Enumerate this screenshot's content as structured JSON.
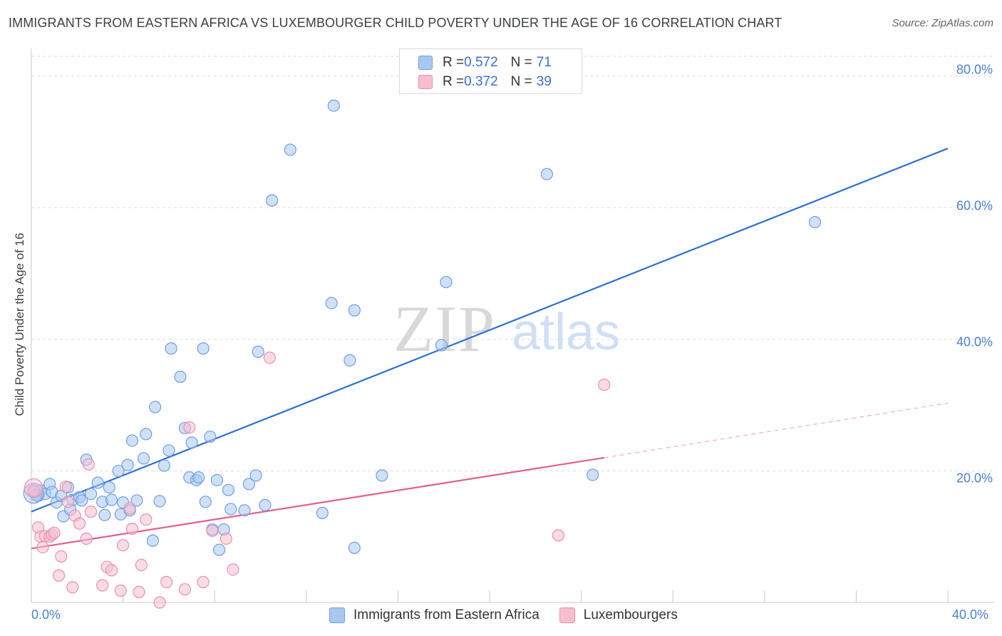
{
  "title": "IMMIGRANTS FROM EASTERN AFRICA VS LUXEMBOURGER CHILD POVERTY UNDER THE AGE OF 16 CORRELATION CHART",
  "source": "Source: ZipAtlas.com",
  "watermark": {
    "zip": "ZIP",
    "atlas": "atlas"
  },
  "colors": {
    "blue_fill": "#a9c8f0",
    "blue_stroke": "#6f9fe0",
    "blue_line": "#2e6fd0",
    "pink_fill": "#f6bfd0",
    "pink_stroke": "#ec8fae",
    "pink_line": "#e0608e",
    "axis_text": "#4a7fd4"
  },
  "legend": {
    "rows": [
      {
        "r_label": "R = ",
        "r_value": "0.572",
        "n_label": "N = ",
        "n_value": "71"
      },
      {
        "r_label": "R = ",
        "r_value": "0.372",
        "n_label": "N = ",
        "n_value": "39"
      }
    ]
  },
  "bottom_legend": {
    "series1": "Immigrants from Eastern Africa",
    "series2": "Luxembourgers"
  },
  "chart_data": {
    "type": "scatter",
    "title": "IMMIGRANTS FROM EASTERN AFRICA VS LUXEMBOURGER CHILD POVERTY UNDER THE AGE OF 16 CORRELATION CHART",
    "xlabel": "",
    "ylabel": "Child Poverty Under the Age of 16",
    "xlim": [
      0,
      40
    ],
    "ylim": [
      0,
      83
    ],
    "x_tick_labels": [
      "0.0%",
      "40.0%"
    ],
    "y_ticks": [
      20,
      40,
      60,
      80
    ],
    "y_tick_labels": [
      "20.0%",
      "40.0%",
      "60.0%",
      "80.0%"
    ],
    "grid": true,
    "legend_position": "top-center",
    "series": [
      {
        "name": "Immigrants from Eastern Africa",
        "color": "#a9c8f0",
        "R": 0.572,
        "N": 71,
        "trend": {
          "x0": 0,
          "y0": 13.8,
          "x1": 40,
          "y1": 69.0
        },
        "points": [
          [
            0.1,
            16.8
          ],
          [
            0.3,
            16.2
          ],
          [
            0.4,
            17.0
          ],
          [
            0.6,
            16.5
          ],
          [
            0.8,
            18.0
          ],
          [
            0.9,
            16.8
          ],
          [
            1.1,
            15.2
          ],
          [
            1.3,
            16.2
          ],
          [
            1.4,
            13.1
          ],
          [
            1.6,
            17.5
          ],
          [
            1.7,
            14.1
          ],
          [
            1.8,
            15.6
          ],
          [
            2.1,
            16.0
          ],
          [
            2.2,
            15.5
          ],
          [
            2.4,
            21.7
          ],
          [
            2.6,
            16.5
          ],
          [
            2.9,
            18.2
          ],
          [
            3.1,
            15.3
          ],
          [
            3.2,
            13.3
          ],
          [
            3.4,
            17.5
          ],
          [
            3.5,
            15.6
          ],
          [
            3.8,
            20.0
          ],
          [
            3.9,
            13.4
          ],
          [
            4.0,
            15.2
          ],
          [
            4.2,
            20.9
          ],
          [
            4.3,
            14.0
          ],
          [
            4.4,
            24.6
          ],
          [
            4.6,
            15.5
          ],
          [
            4.9,
            21.9
          ],
          [
            5.0,
            25.6
          ],
          [
            5.3,
            9.4
          ],
          [
            5.4,
            29.7
          ],
          [
            5.6,
            15.4
          ],
          [
            5.8,
            20.8
          ],
          [
            6.0,
            23.1
          ],
          [
            6.1,
            38.6
          ],
          [
            6.5,
            34.3
          ],
          [
            6.7,
            26.5
          ],
          [
            6.9,
            19.0
          ],
          [
            7.0,
            24.3
          ],
          [
            7.2,
            18.6
          ],
          [
            7.3,
            19.0
          ],
          [
            7.5,
            38.6
          ],
          [
            7.6,
            15.3
          ],
          [
            7.8,
            25.2
          ],
          [
            7.9,
            11.1
          ],
          [
            8.1,
            18.6
          ],
          [
            8.2,
            8.0
          ],
          [
            8.4,
            11.1
          ],
          [
            8.6,
            17.1
          ],
          [
            8.7,
            14.2
          ],
          [
            9.3,
            14.0
          ],
          [
            9.5,
            18.0
          ],
          [
            9.8,
            19.3
          ],
          [
            9.9,
            38.1
          ],
          [
            10.2,
            14.8
          ],
          [
            10.5,
            61.1
          ],
          [
            11.3,
            68.8
          ],
          [
            12.7,
            13.6
          ],
          [
            13.1,
            45.5
          ],
          [
            13.2,
            75.5
          ],
          [
            13.9,
            36.8
          ],
          [
            14.1,
            44.4
          ],
          [
            14.1,
            8.3
          ],
          [
            15.3,
            19.3
          ],
          [
            17.9,
            39.1
          ],
          [
            18.1,
            48.7
          ],
          [
            22.5,
            65.1
          ],
          [
            24.5,
            19.4
          ],
          [
            34.2,
            57.8
          ],
          [
            0.2,
            16.3
          ]
        ]
      },
      {
        "name": "Luxembourgers",
        "color": "#f6bfd0",
        "R": 0.372,
        "N": 39,
        "trend": {
          "x0": 0,
          "y0": 8.2,
          "x1": 25,
          "y1": 22.0
        },
        "trend_dashed": {
          "x0": 25,
          "y0": 22.0,
          "x1": 40,
          "y1": 30.3
        },
        "points": [
          [
            0.1,
            17.0
          ],
          [
            0.3,
            11.4
          ],
          [
            0.4,
            10.0
          ],
          [
            0.5,
            8.4
          ],
          [
            0.6,
            10.1
          ],
          [
            0.8,
            10.0
          ],
          [
            0.9,
            10.3
          ],
          [
            1.0,
            10.6
          ],
          [
            1.2,
            4.1
          ],
          [
            1.3,
            7.0
          ],
          [
            1.5,
            17.6
          ],
          [
            1.6,
            15.3
          ],
          [
            1.8,
            2.3
          ],
          [
            1.9,
            13.2
          ],
          [
            2.1,
            12.0
          ],
          [
            2.4,
            9.7
          ],
          [
            2.5,
            21.0
          ],
          [
            2.6,
            13.8
          ],
          [
            3.1,
            2.6
          ],
          [
            3.3,
            5.4
          ],
          [
            3.5,
            4.9
          ],
          [
            3.9,
            1.8
          ],
          [
            4.0,
            8.7
          ],
          [
            4.3,
            14.3
          ],
          [
            4.4,
            11.2
          ],
          [
            4.7,
            1.6
          ],
          [
            4.8,
            5.7
          ],
          [
            5.0,
            12.6
          ],
          [
            5.6,
            0.0
          ],
          [
            5.9,
            3.1
          ],
          [
            6.7,
            2.0
          ],
          [
            6.9,
            26.6
          ],
          [
            7.5,
            3.1
          ],
          [
            7.9,
            10.9
          ],
          [
            8.5,
            9.7
          ],
          [
            8.8,
            5.0
          ],
          [
            10.4,
            37.2
          ],
          [
            23.0,
            10.2
          ],
          [
            25.0,
            33.1
          ]
        ]
      }
    ]
  }
}
